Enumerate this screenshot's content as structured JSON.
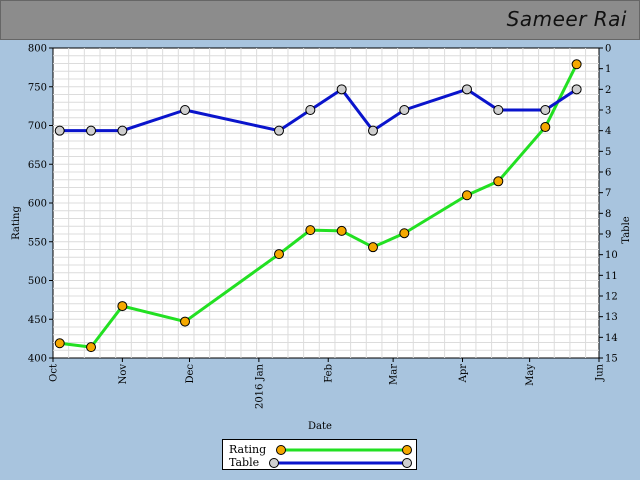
{
  "header": {
    "name": "Sameer Rai"
  },
  "legend": {
    "rating_label": "Rating",
    "table_label": "Table"
  },
  "colors": {
    "rating_line": "#22e022",
    "rating_marker": "#f5a800",
    "table_line": "#0a14cc",
    "table_marker": "#cfcfcf",
    "grid": "#dcdcdc",
    "background": "#a8c4de",
    "header": "#8c8c8c"
  },
  "chart_data": {
    "type": "line",
    "title": "",
    "xlabel": "Date",
    "ylabel": "Rating",
    "y2label": "Table",
    "xlim": [
      "2015-10-01",
      "2016-06-01"
    ],
    "ylim": [
      400,
      800
    ],
    "y2lim": [
      15,
      0
    ],
    "y2_inverted": true,
    "grid": true,
    "legend_position": "bottom-center",
    "x_ticks": [
      {
        "date": "2015-10-01",
        "label": "Oct"
      },
      {
        "date": "2015-11-01",
        "label": "Nov"
      },
      {
        "date": "2015-12-01",
        "label": "Dec"
      },
      {
        "date": "2016-01-01",
        "label": "2016 Jan"
      },
      {
        "date": "2016-02-01",
        "label": "Feb"
      },
      {
        "date": "2016-03-01",
        "label": "Mar"
      },
      {
        "date": "2016-04-01",
        "label": "Apr"
      },
      {
        "date": "2016-05-01",
        "label": "May"
      },
      {
        "date": "2016-06-01",
        "label": "Jun"
      }
    ],
    "y_ticks": [
      400,
      450,
      500,
      550,
      600,
      650,
      700,
      750,
      800
    ],
    "y2_ticks": [
      0,
      1,
      2,
      3,
      4,
      5,
      6,
      7,
      8,
      9,
      10,
      11,
      12,
      13,
      14,
      15
    ],
    "series": [
      {
        "name": "Rating",
        "axis": "left",
        "points": [
          {
            "x": "2015-10-04",
            "y": 419
          },
          {
            "x": "2015-10-18",
            "y": 414
          },
          {
            "x": "2015-11-01",
            "y": 467
          },
          {
            "x": "2015-11-29",
            "y": 447
          },
          {
            "x": "2016-01-10",
            "y": 534
          },
          {
            "x": "2016-01-24",
            "y": 565
          },
          {
            "x": "2016-02-07",
            "y": 564
          },
          {
            "x": "2016-02-21",
            "y": 543
          },
          {
            "x": "2016-03-06",
            "y": 561
          },
          {
            "x": "2016-04-03",
            "y": 610
          },
          {
            "x": "2016-04-17",
            "y": 628
          },
          {
            "x": "2016-05-08",
            "y": 698
          },
          {
            "x": "2016-05-22",
            "y": 779
          }
        ]
      },
      {
        "name": "Table",
        "axis": "right",
        "points": [
          {
            "x": "2015-10-04",
            "y": 4
          },
          {
            "x": "2015-10-18",
            "y": 4
          },
          {
            "x": "2015-11-01",
            "y": 4
          },
          {
            "x": "2015-11-29",
            "y": 3
          },
          {
            "x": "2016-01-10",
            "y": 4
          },
          {
            "x": "2016-01-24",
            "y": 3
          },
          {
            "x": "2016-02-07",
            "y": 2
          },
          {
            "x": "2016-02-21",
            "y": 4
          },
          {
            "x": "2016-03-06",
            "y": 3
          },
          {
            "x": "2016-04-03",
            "y": 2
          },
          {
            "x": "2016-04-17",
            "y": 3
          },
          {
            "x": "2016-05-08",
            "y": 3
          },
          {
            "x": "2016-05-22",
            "y": 2
          }
        ]
      }
    ]
  }
}
